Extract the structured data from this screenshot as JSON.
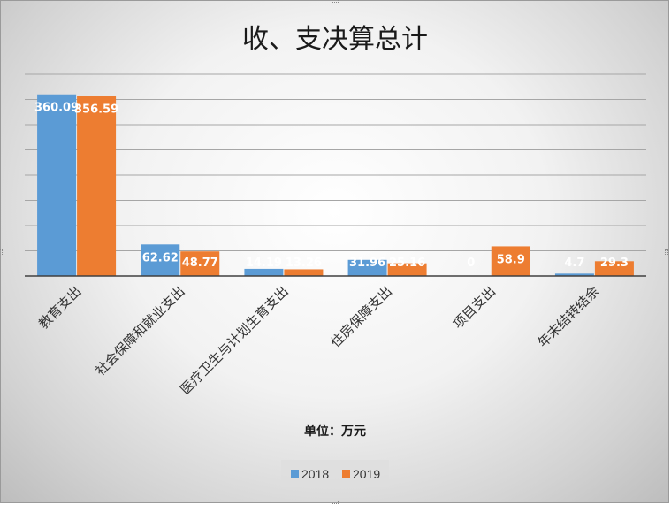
{
  "chart_data": {
    "type": "bar",
    "title": "收、支决算总计",
    "xlabel": "单位：万元",
    "ylabel": "",
    "categories": [
      "教育支出",
      "社会保障和就业支出",
      "医疗卫生与计划生育支出",
      "住房保障支出",
      "项目支出",
      "年末结转结余"
    ],
    "series": [
      {
        "name": "2018",
        "color": "#5b9bd5",
        "values": [
          360.09,
          62.62,
          14.19,
          31.96,
          0,
          4.7
        ],
        "labels": [
          "360.09",
          "62.62",
          "14.19",
          "31.96",
          "0",
          "4.7"
        ]
      },
      {
        "name": "2019",
        "color": "#ed7d31",
        "values": [
          356.59,
          48.77,
          13.26,
          25.16,
          58.9,
          29.3
        ],
        "labels": [
          "356.59",
          "48.77",
          "13.26",
          "25.16",
          "58.9",
          "29.3"
        ]
      }
    ],
    "ylim": [
      0,
      400
    ],
    "grid": true,
    "legend_position": "bottom"
  }
}
